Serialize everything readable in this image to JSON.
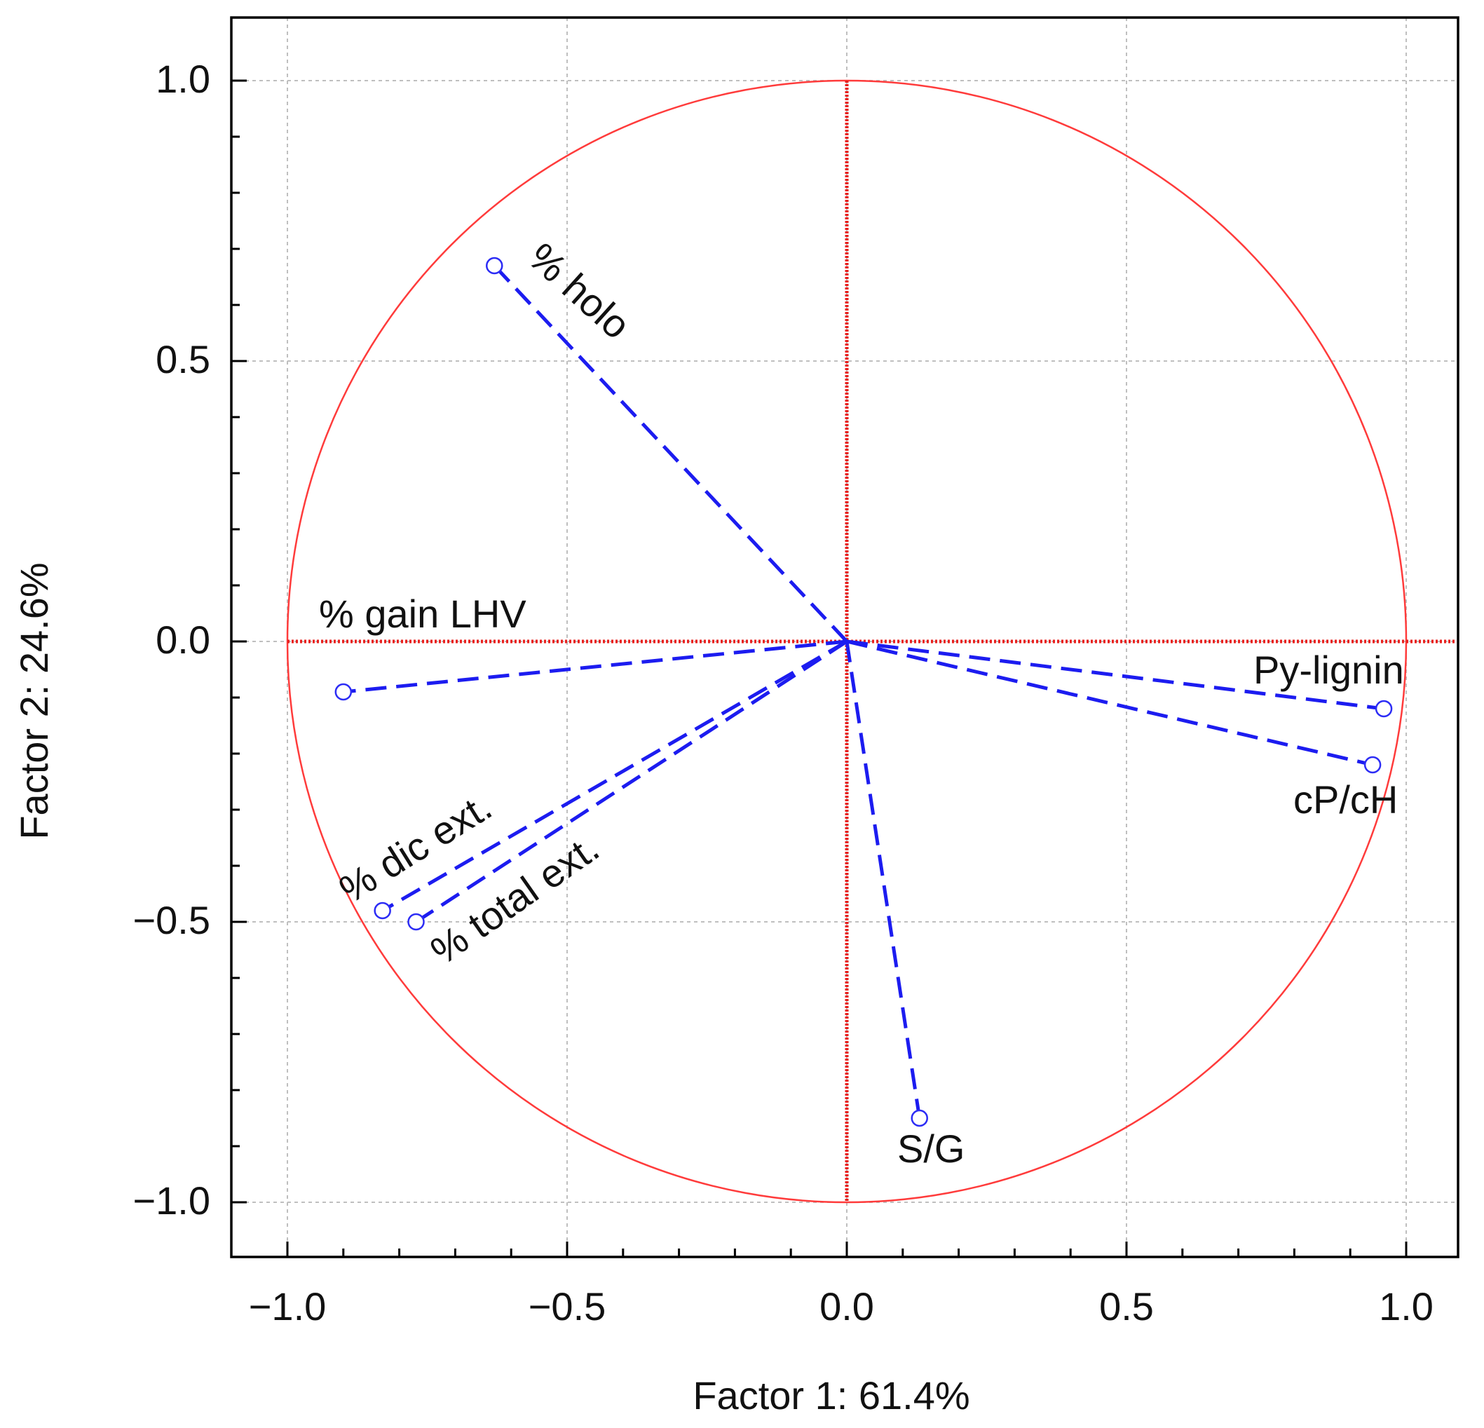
{
  "chart_data": {
    "type": "scatter",
    "subtype": "pca-loading-plot",
    "title": "",
    "xlabel": "Factor 1: 61.4%",
    "ylabel": "Factor 2: 24.6%",
    "xlim": [
      -1.1,
      1.1
    ],
    "ylim": [
      -1.1,
      1.1
    ],
    "xticks": [
      -1.0,
      -0.5,
      0.0,
      0.5,
      1.0
    ],
    "yticks": [
      -1.0,
      -0.5,
      0.0,
      0.5,
      1.0
    ],
    "xtick_labels": [
      "−1.0",
      "−0.5",
      "0.0",
      "0.5",
      "1.0"
    ],
    "ytick_labels": [
      "−1.0",
      "−0.5",
      "0.0",
      "0.5",
      "1.0"
    ],
    "grid": true,
    "unit_circle_radius": 1.0,
    "colors": {
      "circle": "#ff3b3b",
      "axes_lines": "#e8201e",
      "vectors": "#1c1cf0",
      "markers": "#2c2cf5",
      "grid": "#bfbfbf",
      "frame": "#000000"
    },
    "variables": [
      {
        "name": "% holo",
        "x": -0.63,
        "y": 0.67
      },
      {
        "name": "% gain LHV",
        "x": -0.9,
        "y": -0.09
      },
      {
        "name": "% dic ext.",
        "x": -0.83,
        "y": -0.48
      },
      {
        "name": "% total ext.",
        "x": -0.77,
        "y": -0.5
      },
      {
        "name": "S/G",
        "x": 0.13,
        "y": -0.85
      },
      {
        "name": "Py-lignin",
        "x": 0.96,
        "y": -0.12
      },
      {
        "name": "cP/cH",
        "x": 0.94,
        "y": -0.22
      }
    ]
  }
}
